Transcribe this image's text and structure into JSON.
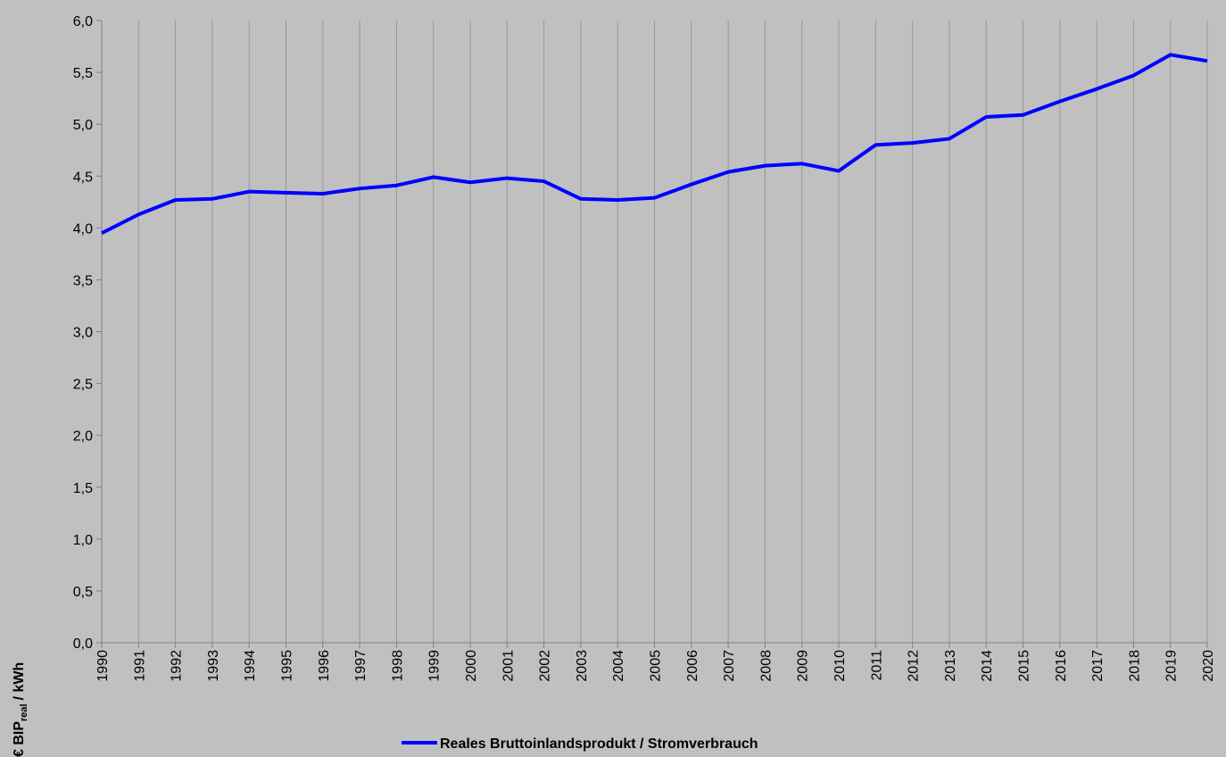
{
  "chart_data": {
    "type": "line",
    "ylabel": "€ BIP",
    "ylabel_sub": "real",
    "ylabel_suffix": "/ kWh",
    "categories": [
      "1990",
      "1991",
      "1992",
      "1993",
      "1994",
      "1995",
      "1996",
      "1997",
      "1998",
      "1999",
      "2000",
      "2001",
      "2002",
      "2003",
      "2004",
      "2005",
      "2006",
      "2007",
      "2008",
      "2009",
      "2010",
      "2011",
      "2012",
      "2013",
      "2014",
      "2015",
      "2016",
      "2017",
      "2018",
      "2019",
      "2020"
    ],
    "series": [
      {
        "name": "Reales Bruttoinlandsprodukt / Stromverbrauch",
        "color": "#0000ff",
        "values": [
          3.95,
          4.13,
          4.27,
          4.28,
          4.35,
          4.34,
          4.33,
          4.38,
          4.41,
          4.49,
          4.44,
          4.48,
          4.45,
          4.28,
          4.27,
          4.29,
          4.42,
          4.54,
          4.6,
          4.62,
          4.55,
          4.8,
          4.82,
          4.86,
          5.07,
          5.09,
          5.22,
          5.34,
          5.47,
          5.67,
          5.61
        ]
      }
    ],
    "ylim": [
      0,
      6
    ],
    "yticks": [
      {
        "value": 0,
        "label": "0,0"
      },
      {
        "value": 0.5,
        "label": "0,5"
      },
      {
        "value": 1,
        "label": "1,0"
      },
      {
        "value": 1.5,
        "label": "1,5"
      },
      {
        "value": 2,
        "label": "2,0"
      },
      {
        "value": 2.5,
        "label": "2,5"
      },
      {
        "value": 3,
        "label": "3,0"
      },
      {
        "value": 3.5,
        "label": "3,5"
      },
      {
        "value": 4,
        "label": "4,0"
      },
      {
        "value": 4.5,
        "label": "4,5"
      },
      {
        "value": 5,
        "label": "5,0"
      },
      {
        "value": 5.5,
        "label": "5,5"
      },
      {
        "value": 6,
        "label": "6,0"
      }
    ],
    "grid": true,
    "legend": "bottom"
  }
}
